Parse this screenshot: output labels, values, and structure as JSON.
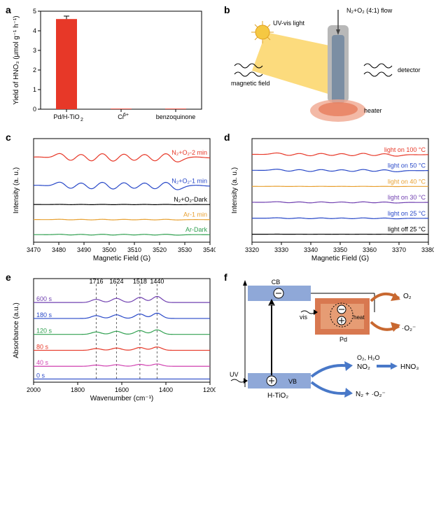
{
  "panel_a": {
    "label": "a",
    "type": "bar",
    "categories": [
      "Pd/H-TiO₂",
      "Cr⁶⁺",
      "benzoquinone"
    ],
    "values": [
      4.6,
      0.03,
      0.03
    ],
    "error": [
      0.15,
      0,
      0
    ],
    "bar_color": "#e73828",
    "xlabel": "",
    "ylabel": "Yield of HNO₃ (μmol g⁻¹ h⁻¹)",
    "ylim": [
      0,
      5
    ],
    "ytick_step": 1,
    "background": "#ffffff",
    "bar_width": 0.35
  },
  "panel_b": {
    "label": "b",
    "type": "schematic",
    "labels": {
      "gas": "N₂+O₂ (4:1) flow",
      "light": "UV-vis light",
      "magnetic": "magnetic field",
      "detector": "detector",
      "heater": "heater"
    },
    "colors": {
      "light_beam": "#fbd566",
      "tube_outer": "#b8b8b8",
      "tube_inner": "#7b8ea3",
      "heater": "#f0a890",
      "sun": "#f5c842"
    }
  },
  "panel_c": {
    "label": "c",
    "type": "line",
    "xlabel": "Magnetic Field (G)",
    "ylabel": "Intensity (a. u.)",
    "xlim": [
      3470,
      3540
    ],
    "xtick_step": 10,
    "series": [
      {
        "name": "N₂+O₂-2 min",
        "color": "#e73828",
        "offset": 4.5,
        "amp": 0.5
      },
      {
        "name": "N₂+O₂-1 min",
        "color": "#2848c8",
        "offset": 3.0,
        "amp": 0.45
      },
      {
        "name": "N₂+O₂-Dark",
        "color": "#000000",
        "offset": 2.0,
        "amp": 0.02
      },
      {
        "name": "Ar-1 min",
        "color": "#e8a030",
        "offset": 1.2,
        "amp": 0.04
      },
      {
        "name": "Ar-Dark",
        "color": "#30a050",
        "offset": 0.4,
        "amp": 0.05
      }
    ]
  },
  "panel_d": {
    "label": "d",
    "type": "line",
    "xlabel": "Magnetic Field (G)",
    "ylabel": "Intensity (a. u.)",
    "xlim": [
      3320,
      3380
    ],
    "xtick_step": 10,
    "series": [
      {
        "name": "light on 100 °C",
        "color": "#e73828",
        "offset": 5.5,
        "amp": 0.25
      },
      {
        "name": "light on 50 °C",
        "color": "#2848c8",
        "offset": 4.5,
        "amp": 0.2
      },
      {
        "name": "light on 40 °C",
        "color": "#e8a030",
        "offset": 3.5,
        "amp": 0.02
      },
      {
        "name": "light on 30 °C",
        "color": "#7040b0",
        "offset": 2.5,
        "amp": 0.1
      },
      {
        "name": "light on 25 °C",
        "color": "#2848c8",
        "offset": 1.5,
        "amp": 0.08
      },
      {
        "name": "light off 25 °C",
        "color": "#000000",
        "offset": 0.5,
        "amp": 0.01
      }
    ]
  },
  "panel_e": {
    "label": "e",
    "type": "line",
    "xlabel": "Wavenumber (cm⁻¹)",
    "ylabel": "Absorbance (a.u.)",
    "xlim": [
      2000,
      1200
    ],
    "xtick_step": 200,
    "peaks": [
      1716,
      1624,
      1518,
      1440
    ],
    "series": [
      {
        "name": "600 s",
        "color": "#7040b0",
        "offset": 5.0,
        "amp": 0.4
      },
      {
        "name": "180 s",
        "color": "#2848c8",
        "offset": 4.0,
        "amp": 0.35
      },
      {
        "name": "120 s",
        "color": "#30a050",
        "offset": 3.0,
        "amp": 0.3
      },
      {
        "name": "80 s",
        "color": "#e73828",
        "offset": 2.0,
        "amp": 0.22
      },
      {
        "name": "40 s",
        "color": "#d040b0",
        "offset": 1.0,
        "amp": 0.15
      },
      {
        "name": "0 s",
        "color": "#2848c8",
        "offset": 0.2,
        "amp": 0.0
      }
    ]
  },
  "panel_f": {
    "label": "f",
    "type": "schematic",
    "labels": {
      "cb": "CB",
      "vb": "VB",
      "htio2": "H-TiO₂",
      "pd": "Pd",
      "vis": "vis",
      "uv": "UV",
      "heat": "heat",
      "o2_top": "O₂",
      "o2_rad": "·O₂⁻",
      "no2": "NO₂",
      "hno3": "HNO₃",
      "h2o": "O₂, H₂O",
      "n2_o2": "N₂ + ·O₂⁻"
    },
    "colors": {
      "cb_box": "#8fa8d8",
      "vb_box": "#8fa8d8",
      "pd_box_outer": "#d87850",
      "pd_box_inner": "#e8a078",
      "arrow_orange": "#c86830",
      "arrow_blue": "#4878c8"
    }
  }
}
